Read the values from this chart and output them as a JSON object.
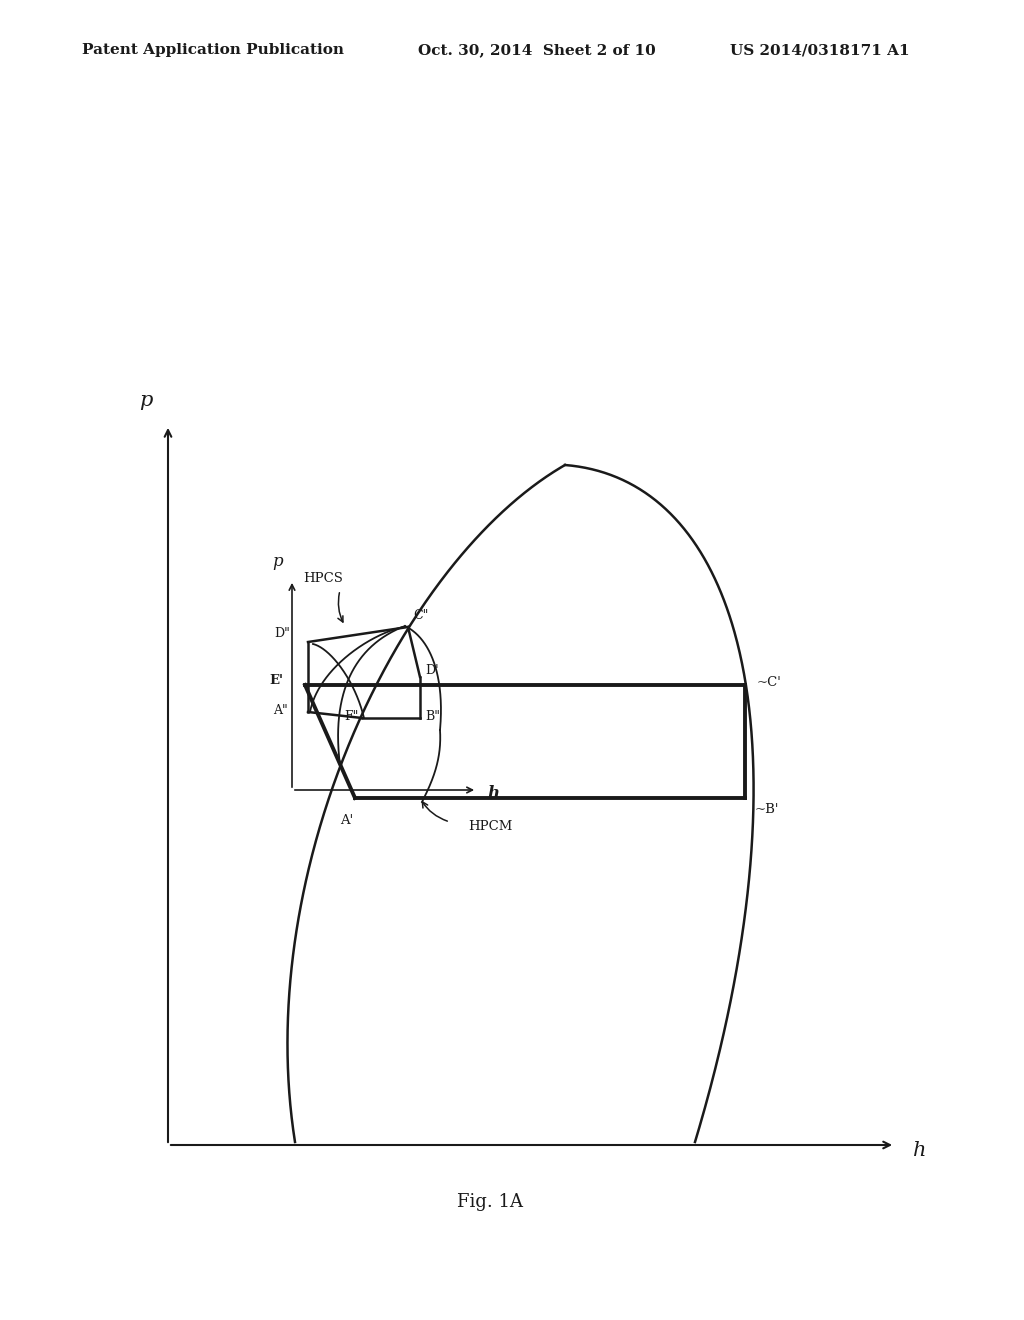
{
  "bg_color": "#ffffff",
  "line_color": "#1a1a1a",
  "header_left": "Patent Application Publication",
  "header_mid": "Oct. 30, 2014  Sheet 2 of 10",
  "header_right": "US 2014/0318171 A1",
  "fig_label": "Fig. 1A",
  "hpcs_label": "HPCS",
  "hpcm_label": "HPCM"
}
